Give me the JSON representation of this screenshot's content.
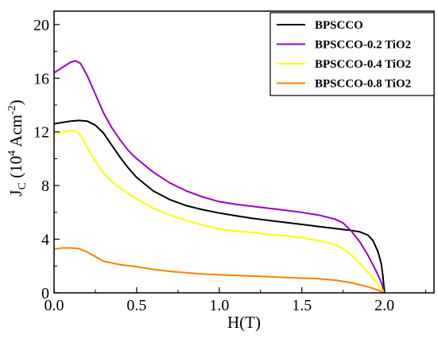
{
  "chart_data": {
    "type": "line",
    "xlabel": "H(T)",
    "ylabel": {
      "main": "J",
      "sub": "C",
      "unit_open": " (10",
      "unit_exp": "4",
      "unit_mid": " Acm",
      "unit_exp2": "-2",
      "unit_close": ")"
    },
    "xlim": [
      0,
      2.3
    ],
    "ylim": [
      0,
      21
    ],
    "x_ticks": [
      0.0,
      0.5,
      1.0,
      1.5,
      2.0
    ],
    "x_tick_labels": [
      "0.0",
      "0.5",
      "1.0",
      "1.5",
      "2.0"
    ],
    "y_ticks": [
      0,
      4,
      8,
      12,
      16,
      20
    ],
    "y_tick_labels": [
      "0",
      "4",
      "8",
      "12",
      "16",
      "20"
    ],
    "legend_position": "top-right",
    "grid": false,
    "series": [
      {
        "name": "BPSCCO",
        "color": "#000000",
        "points": [
          [
            0.0,
            12.6
          ],
          [
            0.05,
            12.7
          ],
          [
            0.1,
            12.8
          ],
          [
            0.15,
            12.85
          ],
          [
            0.2,
            12.8
          ],
          [
            0.25,
            12.5
          ],
          [
            0.3,
            11.9
          ],
          [
            0.35,
            11.0
          ],
          [
            0.4,
            10.1
          ],
          [
            0.45,
            9.3
          ],
          [
            0.5,
            8.6
          ],
          [
            0.6,
            7.6
          ],
          [
            0.7,
            6.95
          ],
          [
            0.8,
            6.5
          ],
          [
            0.9,
            6.2
          ],
          [
            1.0,
            5.95
          ],
          [
            1.1,
            5.75
          ],
          [
            1.2,
            5.55
          ],
          [
            1.3,
            5.4
          ],
          [
            1.4,
            5.25
          ],
          [
            1.5,
            5.1
          ],
          [
            1.6,
            4.95
          ],
          [
            1.7,
            4.8
          ],
          [
            1.8,
            4.65
          ],
          [
            1.85,
            4.55
          ],
          [
            1.9,
            4.3
          ],
          [
            1.93,
            3.9
          ],
          [
            1.96,
            3.1
          ],
          [
            1.98,
            2.2
          ],
          [
            1.99,
            1.3
          ],
          [
            2.0,
            0.0
          ]
        ]
      },
      {
        "name": "BPSCCO-0.2 TiO2",
        "color": "#9900cc",
        "points": [
          [
            0.0,
            16.4
          ],
          [
            0.05,
            16.8
          ],
          [
            0.1,
            17.2
          ],
          [
            0.13,
            17.3
          ],
          [
            0.16,
            17.1
          ],
          [
            0.2,
            16.2
          ],
          [
            0.25,
            14.8
          ],
          [
            0.3,
            13.4
          ],
          [
            0.35,
            12.3
          ],
          [
            0.4,
            11.4
          ],
          [
            0.45,
            10.6
          ],
          [
            0.5,
            10.0
          ],
          [
            0.6,
            9.0
          ],
          [
            0.7,
            8.2
          ],
          [
            0.8,
            7.6
          ],
          [
            0.9,
            7.15
          ],
          [
            1.0,
            6.8
          ],
          [
            1.1,
            6.6
          ],
          [
            1.2,
            6.45
          ],
          [
            1.3,
            6.3
          ],
          [
            1.4,
            6.15
          ],
          [
            1.5,
            6.0
          ],
          [
            1.6,
            5.8
          ],
          [
            1.7,
            5.5
          ],
          [
            1.75,
            5.2
          ],
          [
            1.8,
            4.6
          ],
          [
            1.85,
            3.8
          ],
          [
            1.9,
            2.8
          ],
          [
            1.95,
            1.6
          ],
          [
            1.98,
            0.8
          ],
          [
            2.0,
            0.0
          ]
        ]
      },
      {
        "name": "BPSCCO-0.4 TiO2",
        "color": "#ffff00",
        "points": [
          [
            0.0,
            11.8
          ],
          [
            0.05,
            12.0
          ],
          [
            0.1,
            12.1
          ],
          [
            0.13,
            12.05
          ],
          [
            0.17,
            11.6
          ],
          [
            0.2,
            10.8
          ],
          [
            0.25,
            9.8
          ],
          [
            0.3,
            8.9
          ],
          [
            0.35,
            8.3
          ],
          [
            0.4,
            7.8
          ],
          [
            0.5,
            7.0
          ],
          [
            0.6,
            6.3
          ],
          [
            0.7,
            5.8
          ],
          [
            0.8,
            5.4
          ],
          [
            0.9,
            5.05
          ],
          [
            1.0,
            4.75
          ],
          [
            1.1,
            4.6
          ],
          [
            1.2,
            4.5
          ],
          [
            1.3,
            4.35
          ],
          [
            1.4,
            4.25
          ],
          [
            1.5,
            4.1
          ],
          [
            1.6,
            3.9
          ],
          [
            1.7,
            3.6
          ],
          [
            1.75,
            3.3
          ],
          [
            1.8,
            2.8
          ],
          [
            1.85,
            2.2
          ],
          [
            1.9,
            1.5
          ],
          [
            1.95,
            0.8
          ],
          [
            2.0,
            0.0
          ]
        ]
      },
      {
        "name": "BPSCCO-0.8 TiO2",
        "color": "#ff8000",
        "points": [
          [
            0.0,
            3.25
          ],
          [
            0.05,
            3.35
          ],
          [
            0.1,
            3.35
          ],
          [
            0.15,
            3.3
          ],
          [
            0.2,
            3.05
          ],
          [
            0.25,
            2.7
          ],
          [
            0.3,
            2.35
          ],
          [
            0.4,
            2.1
          ],
          [
            0.5,
            1.95
          ],
          [
            0.6,
            1.75
          ],
          [
            0.7,
            1.6
          ],
          [
            0.8,
            1.5
          ],
          [
            0.9,
            1.4
          ],
          [
            1.0,
            1.35
          ],
          [
            1.1,
            1.3
          ],
          [
            1.2,
            1.25
          ],
          [
            1.3,
            1.2
          ],
          [
            1.4,
            1.15
          ],
          [
            1.5,
            1.1
          ],
          [
            1.6,
            1.05
          ],
          [
            1.7,
            0.95
          ],
          [
            1.8,
            0.75
          ],
          [
            1.85,
            0.6
          ],
          [
            1.9,
            0.45
          ],
          [
            1.95,
            0.25
          ],
          [
            2.0,
            0.0
          ]
        ]
      }
    ]
  }
}
